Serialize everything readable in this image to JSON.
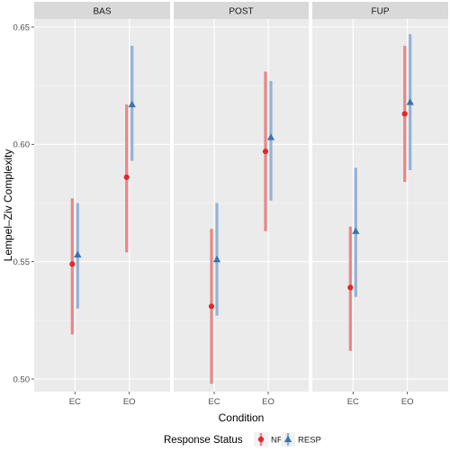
{
  "chart_data": {
    "type": "errorbar",
    "title": "",
    "xlabel": "Condition",
    "ylabel": "Lempel–Ziv Complexity",
    "ylim": [
      0.493,
      0.655
    ],
    "yticks": [
      0.5,
      0.55,
      0.6,
      0.65
    ],
    "ytick_labels": [
      "0.50",
      "0.55",
      "0.60",
      "0.65"
    ],
    "categories": [
      "EC",
      "EO"
    ],
    "grid": true,
    "legend_position": "bottom",
    "legend_title": "Response Status",
    "series": [
      {
        "name": "NR",
        "color": "#e41a1c",
        "marker": "circle"
      },
      {
        "name": "RESP",
        "color": "#377eb8",
        "marker": "triangle"
      }
    ],
    "facets": [
      {
        "label": "BAS",
        "points": [
          {
            "category": "EC",
            "series": "NR",
            "y": 0.549,
            "low": 0.519,
            "high": 0.577
          },
          {
            "category": "EC",
            "series": "RESP",
            "y": 0.553,
            "low": 0.53,
            "high": 0.575
          },
          {
            "category": "EO",
            "series": "NR",
            "y": 0.586,
            "low": 0.554,
            "high": 0.617
          },
          {
            "category": "EO",
            "series": "RESP",
            "y": 0.617,
            "low": 0.593,
            "high": 0.642
          }
        ]
      },
      {
        "label": "POST",
        "points": [
          {
            "category": "EC",
            "series": "NR",
            "y": 0.531,
            "low": 0.498,
            "high": 0.564
          },
          {
            "category": "EC",
            "series": "RESP",
            "y": 0.551,
            "low": 0.527,
            "high": 0.575
          },
          {
            "category": "EO",
            "series": "NR",
            "y": 0.597,
            "low": 0.563,
            "high": 0.631
          },
          {
            "category": "EO",
            "series": "RESP",
            "y": 0.603,
            "low": 0.576,
            "high": 0.627
          }
        ]
      },
      {
        "label": "FUP",
        "points": [
          {
            "category": "EC",
            "series": "NR",
            "y": 0.539,
            "low": 0.512,
            "high": 0.565
          },
          {
            "category": "EC",
            "series": "RESP",
            "y": 0.563,
            "low": 0.535,
            "high": 0.59
          },
          {
            "category": "EO",
            "series": "NR",
            "y": 0.613,
            "low": 0.584,
            "high": 0.642
          },
          {
            "category": "EO",
            "series": "RESP",
            "y": 0.618,
            "low": 0.589,
            "high": 0.647
          }
        ]
      }
    ]
  }
}
